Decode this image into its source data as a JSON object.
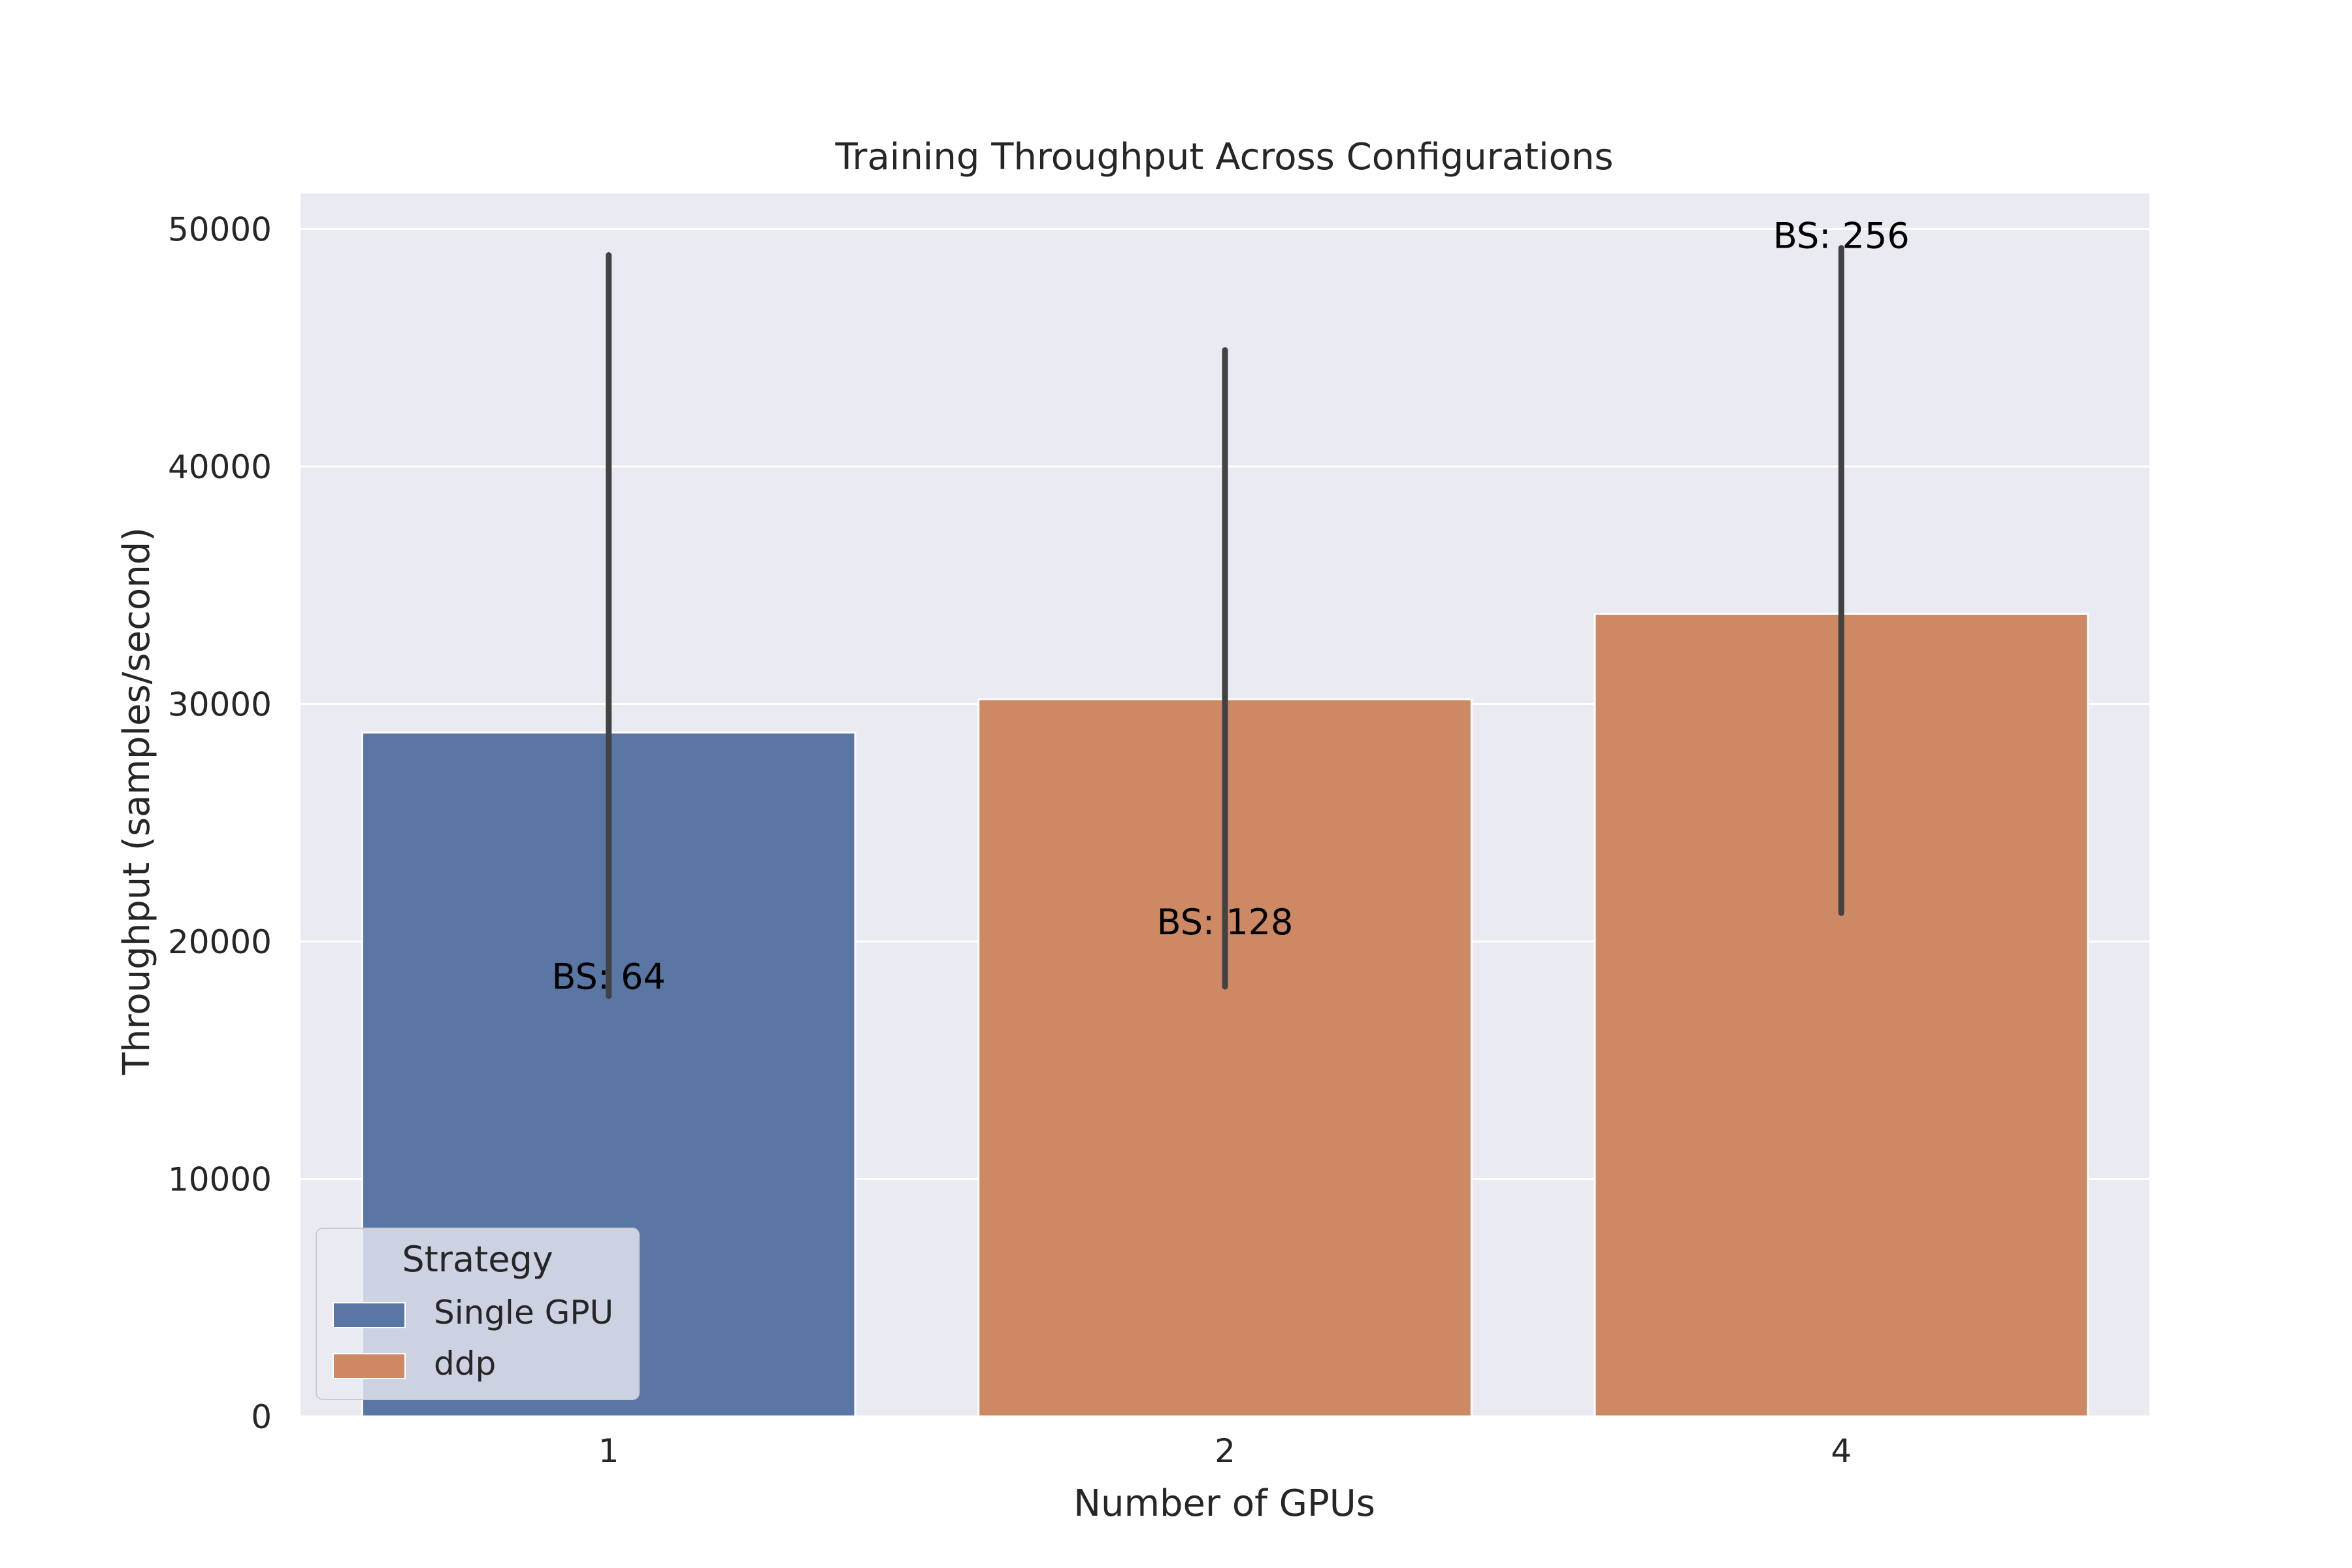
{
  "chart_data": {
    "type": "bar",
    "title": "Training Throughput Across Configurations",
    "xlabel": "Number of GPUs",
    "ylabel": "Throughput (samples/second)",
    "categories": [
      "1",
      "2",
      "4"
    ],
    "ylim": [
      0,
      51500
    ],
    "yticks": [
      0,
      10000,
      20000,
      30000,
      40000,
      50000
    ],
    "grid": true,
    "legend_placement": "lower-left",
    "legend": {
      "title": "Strategy",
      "entries": [
        {
          "name": "Single GPU",
          "color": "#5a76a4"
        },
        {
          "name": "ddp",
          "color": "#cc8963"
        }
      ]
    },
    "bars": [
      {
        "category": "1",
        "strategy": "Single GPU",
        "value": 28800,
        "err_low": 17700,
        "err_high": 48900,
        "label": "BS: 64",
        "label_value": 18500
      },
      {
        "category": "2",
        "strategy": "ddp",
        "value": 30200,
        "err_low": 18100,
        "err_high": 44900,
        "label": "BS: 128",
        "label_value": 20800
      },
      {
        "category": "4",
        "strategy": "ddp",
        "value": 33800,
        "err_low": 21200,
        "err_high": 49200,
        "label": "BS: 256",
        "label_value": 49700
      }
    ],
    "colors": {
      "background": "#eaeaf2",
      "grid": "#ffffff",
      "errorbar": "#424242"
    }
  }
}
